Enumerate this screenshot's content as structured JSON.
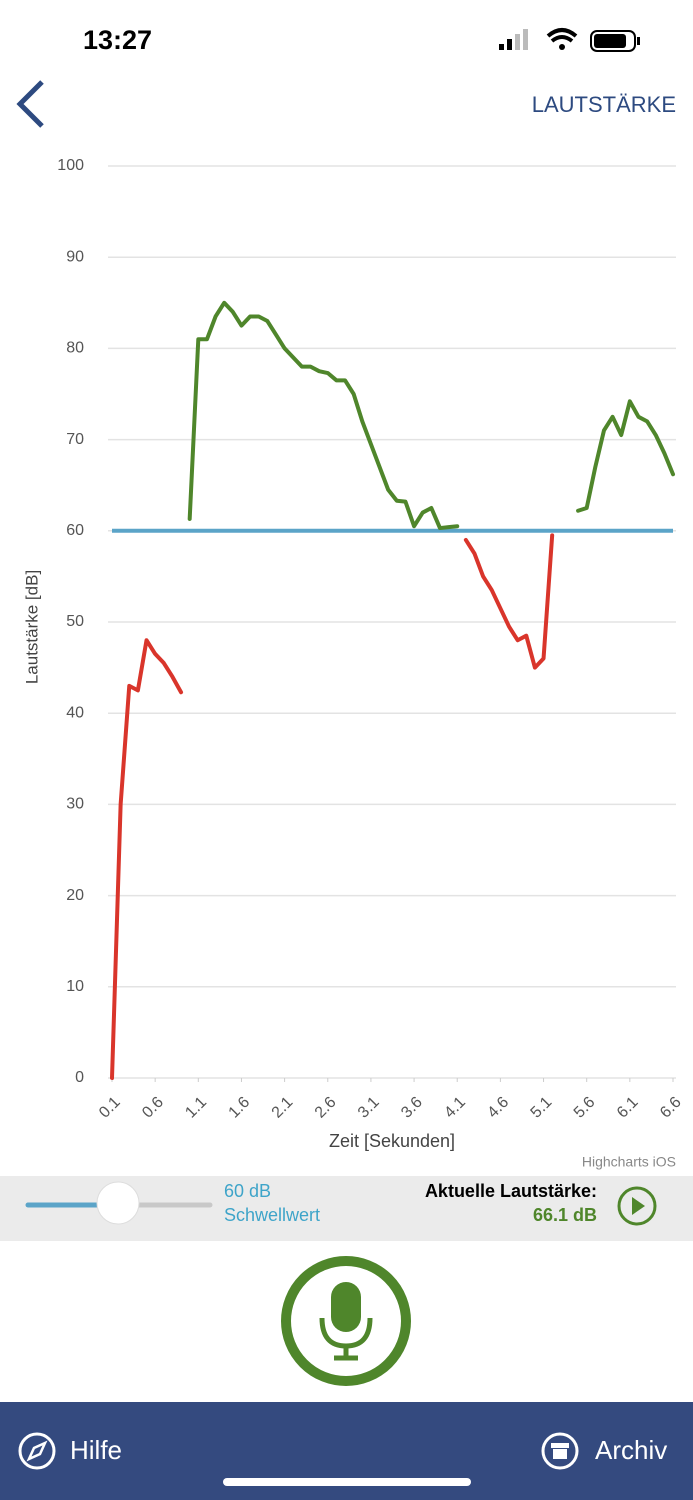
{
  "status_bar": {
    "time": "13:27"
  },
  "header": {
    "title": "LAUTSTÄRKE"
  },
  "chart_data": {
    "type": "line",
    "x": [
      0.1,
      0.2,
      0.3,
      0.4,
      0.5,
      0.6,
      0.7,
      0.8,
      0.9,
      1.0,
      1.1,
      1.2,
      1.3,
      1.4,
      1.5,
      1.6,
      1.7,
      1.8,
      1.9,
      2.0,
      2.1,
      2.2,
      2.3,
      2.4,
      2.5,
      2.6,
      2.7,
      2.8,
      2.9,
      3.0,
      3.1,
      3.2,
      3.3,
      3.4,
      3.5,
      3.6,
      3.7,
      3.8,
      3.9,
      4.0,
      4.1,
      4.2,
      4.3,
      4.4,
      4.5,
      4.6,
      4.7,
      4.8,
      4.9,
      5.0,
      5.1,
      5.2,
      5.3,
      5.4,
      5.5,
      5.6,
      5.7,
      5.8,
      5.9,
      6.0,
      6.1,
      6.2,
      6.3,
      6.4,
      6.5,
      6.6
    ],
    "series": [
      {
        "color": "#d9352b",
        "values": [
          0,
          30,
          43,
          42.5,
          48,
          46.5,
          45.5,
          44,
          42.3,
          null,
          null,
          null,
          null,
          null,
          null,
          null,
          null,
          null,
          null,
          null,
          null,
          null,
          null,
          null,
          null,
          null,
          null,
          null,
          null,
          null,
          null,
          null,
          null,
          null,
          null,
          null,
          null,
          null,
          null,
          null,
          null,
          59,
          57.5,
          55,
          53.5,
          51.5,
          49.5,
          48,
          48.5,
          45,
          46,
          59.5,
          null,
          null,
          null,
          null,
          null,
          null,
          null,
          null,
          null,
          null,
          null,
          null,
          null,
          null
        ]
      },
      {
        "color": "#4f862b",
        "values": [
          null,
          null,
          null,
          null,
          null,
          null,
          null,
          null,
          null,
          61.3,
          81,
          81,
          83.5,
          85,
          84,
          82.5,
          83.5,
          83.5,
          83,
          81.5,
          80,
          79,
          78,
          78,
          77.5,
          77.3,
          76.5,
          76.5,
          75,
          72,
          69.5,
          67,
          64.5,
          63.3,
          63.2,
          60.5,
          62,
          62.5,
          60.3,
          60.4,
          60.5,
          null,
          null,
          null,
          null,
          null,
          null,
          null,
          null,
          null,
          null,
          null,
          null,
          null,
          62.2,
          62.5,
          67,
          71,
          72.5,
          70.5,
          74.2,
          72.5,
          72,
          70.5,
          68.5,
          66.2
        ]
      }
    ],
    "threshold": {
      "value": 60,
      "label": "60 dB",
      "color": "#5ba4c8"
    },
    "xlim": [
      0.1,
      6.6
    ],
    "xticks": [
      0.1,
      0.6,
      1.1,
      1.6,
      2.1,
      2.6,
      3.1,
      3.6,
      4.1,
      4.6,
      5.1,
      5.6,
      6.1,
      6.6
    ],
    "ylim": [
      0,
      100
    ],
    "yticks": [
      0,
      10,
      20,
      30,
      40,
      50,
      60,
      70,
      80,
      90,
      100
    ],
    "grid": true,
    "x_label": "Zeit [Sekunden]",
    "y_label": "Lautstärke [dB]",
    "credit": "Highcharts iOS"
  },
  "controls": {
    "threshold_caption": "Schwellwert",
    "current_label": "Aktuelle Lautstärke:",
    "current_value": {
      "value": 66.1,
      "label": "66.1 dB"
    }
  },
  "tab_bar": {
    "left": "Hilfe",
    "right": "Archiv"
  }
}
